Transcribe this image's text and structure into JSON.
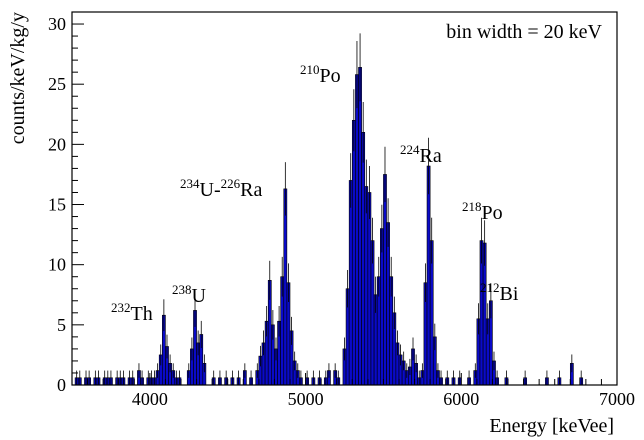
{
  "chart_data": {
    "type": "bar",
    "xlabel": "Energy [keVee]",
    "ylabel": "counts/keV/kg/y",
    "xlim": [
      3500,
      7000
    ],
    "ylim": [
      0,
      31
    ],
    "x_ticks": [
      4000,
      5000,
      6000,
      7000
    ],
    "y_ticks": [
      0,
      5,
      10,
      15,
      20,
      25,
      30
    ],
    "bin_width": 20,
    "grid": false,
    "legend": "none",
    "fill_color": "#0a0ac8",
    "outline_color": "#000000",
    "bins": [
      {
        "x": 3520,
        "y": 0.6
      },
      {
        "x": 3540,
        "y": 0.6
      },
      {
        "x": 3580,
        "y": 0.6
      },
      {
        "x": 3600,
        "y": 0.6
      },
      {
        "x": 3640,
        "y": 0.6
      },
      {
        "x": 3660,
        "y": 0.6
      },
      {
        "x": 3700,
        "y": 0.6
      },
      {
        "x": 3720,
        "y": 0.6
      },
      {
        "x": 3740,
        "y": 0.6
      },
      {
        "x": 3780,
        "y": 0.6
      },
      {
        "x": 3800,
        "y": 0.6
      },
      {
        "x": 3820,
        "y": 0.6
      },
      {
        "x": 3860,
        "y": 0.6
      },
      {
        "x": 3880,
        "y": 0.6
      },
      {
        "x": 3920,
        "y": 1.2
      },
      {
        "x": 3940,
        "y": 0.6
      },
      {
        "x": 3980,
        "y": 0.6
      },
      {
        "x": 4000,
        "y": 0.6
      },
      {
        "x": 4020,
        "y": 0.6
      },
      {
        "x": 4040,
        "y": 1.2
      },
      {
        "x": 4060,
        "y": 2.5
      },
      {
        "x": 4080,
        "y": 5.8
      },
      {
        "x": 4100,
        "y": 3.2
      },
      {
        "x": 4120,
        "y": 1.8
      },
      {
        "x": 4140,
        "y": 1.2
      },
      {
        "x": 4160,
        "y": 0.6
      },
      {
        "x": 4180,
        "y": 0.6
      },
      {
        "x": 4240,
        "y": 1.2
      },
      {
        "x": 4260,
        "y": 3.0
      },
      {
        "x": 4280,
        "y": 6.2
      },
      {
        "x": 4300,
        "y": 3.5
      },
      {
        "x": 4320,
        "y": 4.2
      },
      {
        "x": 4340,
        "y": 1.8
      },
      {
        "x": 4400,
        "y": 0.6
      },
      {
        "x": 4440,
        "y": 0.6
      },
      {
        "x": 4480,
        "y": 0.6
      },
      {
        "x": 4520,
        "y": 0.6
      },
      {
        "x": 4560,
        "y": 0.6
      },
      {
        "x": 4600,
        "y": 1.2
      },
      {
        "x": 4640,
        "y": 0.6
      },
      {
        "x": 4680,
        "y": 1.2
      },
      {
        "x": 4700,
        "y": 2.4
      },
      {
        "x": 4720,
        "y": 3.5
      },
      {
        "x": 4740,
        "y": 5.3
      },
      {
        "x": 4760,
        "y": 8.7
      },
      {
        "x": 4780,
        "y": 5.0
      },
      {
        "x": 4800,
        "y": 3.0
      },
      {
        "x": 4820,
        "y": 5.3
      },
      {
        "x": 4840,
        "y": 9.0
      },
      {
        "x": 4860,
        "y": 16.3
      },
      {
        "x": 4880,
        "y": 8.5
      },
      {
        "x": 4900,
        "y": 4.5
      },
      {
        "x": 4920,
        "y": 2.0
      },
      {
        "x": 4940,
        "y": 1.2
      },
      {
        "x": 4960,
        "y": 0.6
      },
      {
        "x": 5000,
        "y": 0.6
      },
      {
        "x": 5040,
        "y": 0.6
      },
      {
        "x": 5080,
        "y": 0.6
      },
      {
        "x": 5120,
        "y": 0.6
      },
      {
        "x": 5140,
        "y": 1.2
      },
      {
        "x": 5180,
        "y": 1.2
      },
      {
        "x": 5200,
        "y": 0.6
      },
      {
        "x": 5240,
        "y": 3.0
      },
      {
        "x": 5260,
        "y": 8.0
      },
      {
        "x": 5280,
        "y": 17.0
      },
      {
        "x": 5300,
        "y": 22.0
      },
      {
        "x": 5320,
        "y": 25.8
      },
      {
        "x": 5340,
        "y": 26.4
      },
      {
        "x": 5360,
        "y": 21.0
      },
      {
        "x": 5380,
        "y": 16.5
      },
      {
        "x": 5400,
        "y": 16.0
      },
      {
        "x": 5420,
        "y": 12.0
      },
      {
        "x": 5440,
        "y": 7.5
      },
      {
        "x": 5460,
        "y": 9.0
      },
      {
        "x": 5480,
        "y": 13.0
      },
      {
        "x": 5500,
        "y": 17.5
      },
      {
        "x": 5520,
        "y": 13.5
      },
      {
        "x": 5540,
        "y": 9.0
      },
      {
        "x": 5560,
        "y": 6.0
      },
      {
        "x": 5580,
        "y": 3.5
      },
      {
        "x": 5600,
        "y": 2.5
      },
      {
        "x": 5620,
        "y": 2.0
      },
      {
        "x": 5640,
        "y": 1.2
      },
      {
        "x": 5660,
        "y": 1.5
      },
      {
        "x": 5680,
        "y": 3.0
      },
      {
        "x": 5700,
        "y": 1.8
      },
      {
        "x": 5720,
        "y": 0.6
      },
      {
        "x": 5740,
        "y": 1.2
      },
      {
        "x": 5760,
        "y": 8.5
      },
      {
        "x": 5780,
        "y": 18.2
      },
      {
        "x": 5800,
        "y": 12.0
      },
      {
        "x": 5820,
        "y": 4.0
      },
      {
        "x": 5840,
        "y": 1.2
      },
      {
        "x": 5860,
        "y": 0.6
      },
      {
        "x": 5900,
        "y": 0.6
      },
      {
        "x": 5940,
        "y": 0.6
      },
      {
        "x": 5980,
        "y": 0.6
      },
      {
        "x": 6040,
        "y": 0.6
      },
      {
        "x": 6080,
        "y": 1.2
      },
      {
        "x": 6100,
        "y": 5.5
      },
      {
        "x": 6120,
        "y": 12.0
      },
      {
        "x": 6140,
        "y": 11.8
      },
      {
        "x": 6160,
        "y": 5.5
      },
      {
        "x": 6180,
        "y": 7.0
      },
      {
        "x": 6200,
        "y": 2.0
      },
      {
        "x": 6220,
        "y": 0.6
      },
      {
        "x": 6280,
        "y": 0.6
      },
      {
        "x": 6400,
        "y": 0.6
      },
      {
        "x": 6540,
        "y": 0.6
      },
      {
        "x": 6620,
        "y": 0.6
      },
      {
        "x": 6700,
        "y": 1.8
      },
      {
        "x": 6760,
        "y": 0.6
      }
    ]
  },
  "annotations": [
    {
      "key": "bin",
      "main": "bin width = 20 keV"
    },
    {
      "key": "po210",
      "sup": "210",
      "main": "Po"
    },
    {
      "key": "ra224",
      "sup": "224",
      "main": "Ra"
    },
    {
      "key": "u234ra226",
      "sup": "234",
      "main": "U-",
      "sup2": "226",
      "main2": "Ra"
    },
    {
      "key": "po218",
      "sup": "218",
      "main": "Po"
    },
    {
      "key": "u238",
      "sup": "238",
      "main": "U"
    },
    {
      "key": "th232",
      "sup": "232",
      "main": "Th"
    },
    {
      "key": "bi212",
      "sup": "212",
      "main": "Bi"
    }
  ]
}
